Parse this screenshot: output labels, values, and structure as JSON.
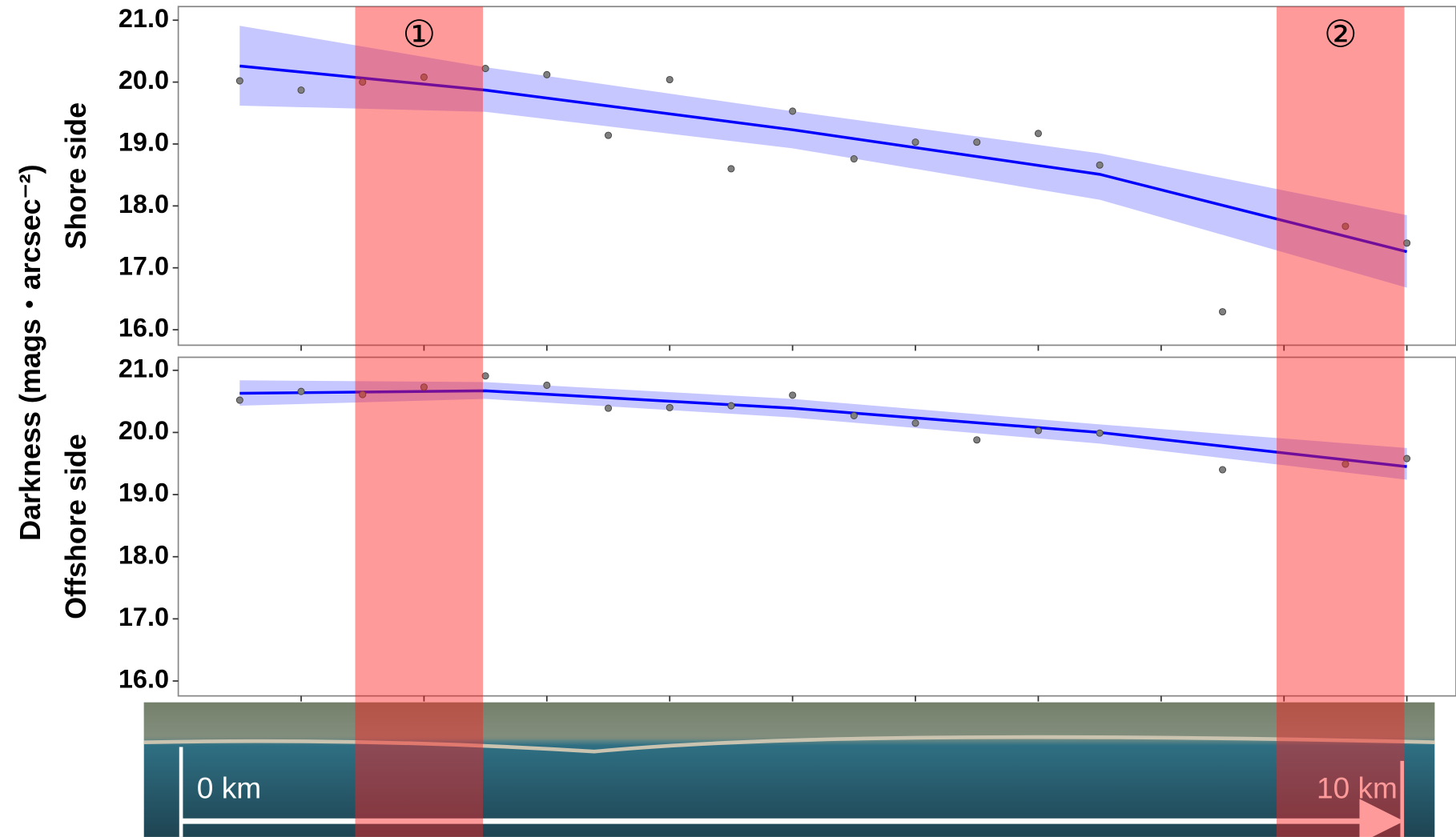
{
  "y_label": "Darkness (mags・arcsec⁻²)",
  "scale": {
    "start_label": "0 km",
    "end_label": "10 km"
  },
  "regions": [
    {
      "x": [
        1.44,
        2.48
      ],
      "label": "①"
    },
    {
      "x": [
        8.94,
        9.98
      ],
      "label": "②"
    }
  ],
  "chart_data": [
    {
      "type": "scatter",
      "ylabel": "Shore side",
      "xlim": [
        0,
        10.4
      ],
      "xticks": [
        1,
        2,
        3,
        4,
        5,
        6,
        7,
        8,
        9,
        10
      ],
      "ylim": [
        15.75,
        21.22
      ],
      "yticks": [
        {
          "value": 16,
          "label": "16.0"
        },
        {
          "value": 17,
          "label": "17.0"
        },
        {
          "value": 18,
          "label": "18.0"
        },
        {
          "value": 19,
          "label": "19.0"
        },
        {
          "value": 20,
          "label": "20.0"
        },
        {
          "value": 21,
          "label": "21.0"
        }
      ],
      "points": {
        "color": "#7f7f7f",
        "x": [
          0.5,
          1,
          1.5,
          2,
          2.5,
          3,
          3.5,
          4,
          4.5,
          5,
          5.5,
          6,
          6.5,
          7,
          7.5,
          8.5,
          9.5,
          10
        ],
        "values": [
          20.02,
          19.87,
          20.0,
          20.08,
          20.22,
          20.12,
          19.14,
          20.04,
          18.6,
          19.53,
          18.76,
          19.03,
          19.03,
          19.17,
          18.66,
          16.29,
          17.67,
          17.4
        ]
      },
      "fit": {
        "color": "#0000ff",
        "band_color": "#9999ff",
        "x": [
          0.5,
          2.5,
          5,
          7.5,
          10
        ],
        "values": [
          20.26,
          19.87,
          19.23,
          18.51,
          17.26
        ],
        "lower": [
          19.62,
          19.52,
          18.93,
          18.1,
          16.68
        ],
        "upper": [
          20.91,
          20.24,
          19.53,
          18.85,
          17.85
        ]
      }
    },
    {
      "type": "scatter",
      "ylabel": "Offshore side",
      "xlim": [
        0,
        10.4
      ],
      "xticks": [
        1,
        2,
        3,
        4,
        5,
        6,
        7,
        8,
        9,
        10
      ],
      "ylim": [
        15.76,
        21.21
      ],
      "yticks": [
        {
          "value": 16,
          "label": "16.0"
        },
        {
          "value": 17,
          "label": "17.0"
        },
        {
          "value": 18,
          "label": "18.0"
        },
        {
          "value": 19,
          "label": "19.0"
        },
        {
          "value": 20,
          "label": "20.0"
        },
        {
          "value": 21,
          "label": "21.0"
        }
      ],
      "points": {
        "color": "#7f7f7f",
        "x": [
          0.5,
          1,
          1.5,
          2,
          2.5,
          3,
          3.5,
          4,
          4.5,
          5,
          5.5,
          6,
          6.5,
          7,
          7.5,
          8.5,
          9.5,
          10
        ],
        "values": [
          20.52,
          20.66,
          20.61,
          20.73,
          20.91,
          20.76,
          20.39,
          20.4,
          20.43,
          20.6,
          20.27,
          20.15,
          19.88,
          20.03,
          19.99,
          19.4,
          19.49,
          19.58
        ]
      },
      "fit": {
        "color": "#0000ff",
        "band_color": "#9999ff",
        "x": [
          0.5,
          2.5,
          5,
          7.5,
          10
        ],
        "values": [
          20.63,
          20.67,
          20.39,
          20.0,
          19.45
        ],
        "lower": [
          20.43,
          20.54,
          20.24,
          19.82,
          19.24
        ],
        "upper": [
          20.84,
          20.81,
          20.54,
          20.13,
          19.75
        ]
      }
    }
  ]
}
